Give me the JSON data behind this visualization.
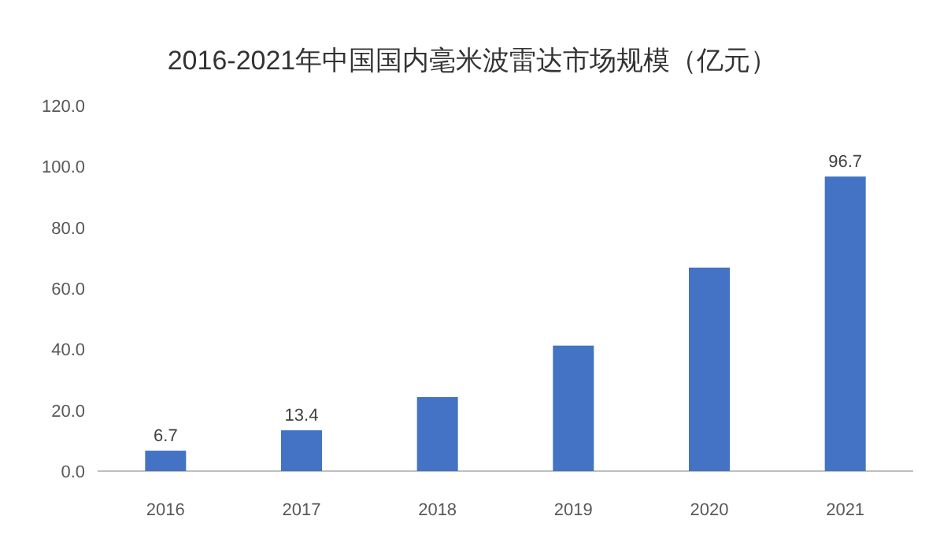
{
  "chart_data": {
    "type": "bar",
    "title": "2016-2021年中国国内毫米波雷达市场规模（亿元）",
    "categories": [
      "2016",
      "2017",
      "2018",
      "2019",
      "2020",
      "2021"
    ],
    "values": [
      6.7,
      13.4,
      24.3,
      41.2,
      66.8,
      96.7
    ],
    "value_labels": [
      "6.7",
      "13.4",
      null,
      null,
      null,
      "96.7"
    ],
    "color": "#4472c4",
    "ylim": [
      0,
      120
    ],
    "yticks": [
      {
        "value": 0,
        "label": "0.0"
      },
      {
        "value": 20,
        "label": "20.0"
      },
      {
        "value": 40,
        "label": "40.0"
      },
      {
        "value": 60,
        "label": "60.0"
      },
      {
        "value": 80,
        "label": "80.0"
      },
      {
        "value": 100,
        "label": "100.0"
      },
      {
        "value": 120,
        "label": "120.0"
      }
    ]
  }
}
